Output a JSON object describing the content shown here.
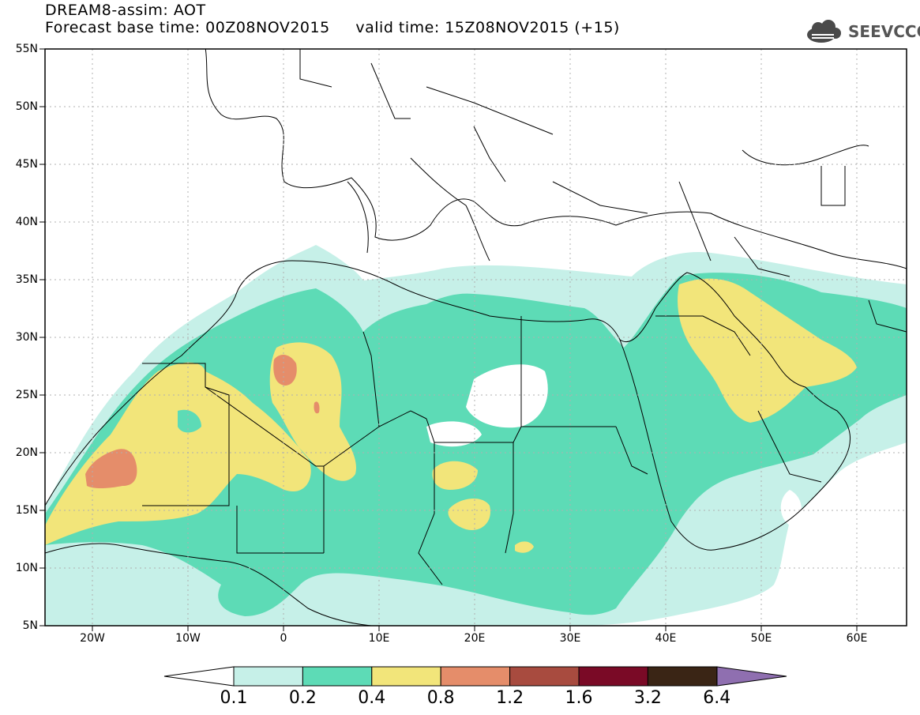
{
  "title": {
    "line1": "DREAM8-assim: AOT",
    "line2": "Forecast base time: 00Z08NOV2015     valid time: 15Z08NOV2015 (+15)"
  },
  "logo": {
    "text": "SEEVCCC",
    "icon": "cloud-logo-icon"
  },
  "map": {
    "lat_labels": [
      "55N",
      "50N",
      "45N",
      "40N",
      "35N",
      "30N",
      "25N",
      "20N",
      "15N",
      "10N",
      "5N"
    ],
    "lon_labels": [
      "20W",
      "10W",
      "0",
      "10E",
      "20E",
      "30E",
      "40E",
      "50E",
      "60E"
    ],
    "extent": {
      "lon_min": -25,
      "lon_max": 65,
      "lat_min": 5,
      "lat_max": 55
    }
  },
  "legend": {
    "labels": [
      "0.1",
      "0.2",
      "0.4",
      "0.8",
      "1.2",
      "1.6",
      "3.2",
      "6.4"
    ],
    "colors": [
      "#c6f0e8",
      "#5ddbb6",
      "#f2e57a",
      "#e58d6a",
      "#a84b3f",
      "#7a0a26",
      "#3a2515",
      "#8f6fb0"
    ],
    "under_color": "#ffffff",
    "over_color": "#8f6fb0"
  }
}
